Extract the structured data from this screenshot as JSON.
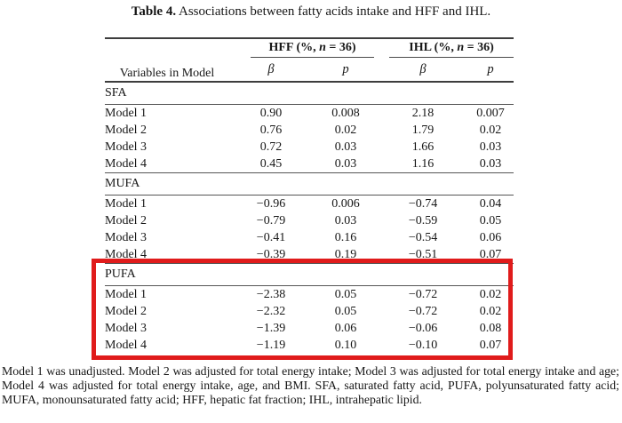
{
  "caption": {
    "label": "Table 4.",
    "text": " Associations between fatty acids intake and HFF and IHL."
  },
  "table": {
    "variables_header": "Variables in Model",
    "groups": [
      {
        "pre": "HFF (%, ",
        "n": "n",
        "post": " = 36)",
        "beta": "β",
        "p": "p"
      },
      {
        "pre": "IHL (%, ",
        "n": "n",
        "post": " = 36)",
        "beta": "β",
        "p": "p"
      }
    ],
    "sections": [
      {
        "label": "SFA",
        "rows": [
          {
            "model": "Model 1",
            "values": [
              "0.90",
              "0.008",
              "2.18",
              "0.007"
            ]
          },
          {
            "model": "Model 2",
            "values": [
              "0.76",
              "0.02",
              "1.79",
              "0.02"
            ]
          },
          {
            "model": "Model 3",
            "values": [
              "0.72",
              "0.03",
              "1.66",
              "0.03"
            ]
          },
          {
            "model": "Model 4",
            "values": [
              "0.45",
              "0.03",
              "1.16",
              "0.03"
            ]
          }
        ]
      },
      {
        "label": "MUFA",
        "rows": [
          {
            "model": "Model 1",
            "values": [
              "−0.96",
              "0.006",
              "−0.74",
              "0.04"
            ]
          },
          {
            "model": "Model 2",
            "values": [
              "−0.79",
              "0.03",
              "−0.59",
              "0.05"
            ]
          },
          {
            "model": "Model 3",
            "values": [
              "−0.41",
              "0.16",
              "−0.54",
              "0.06"
            ]
          },
          {
            "model": "Model 4",
            "values": [
              "−0.39",
              "0.19",
              "−0.51",
              "0.07"
            ]
          }
        ]
      },
      {
        "label": "PUFA",
        "rows": [
          {
            "model": "Model 1",
            "values": [
              "−2.38",
              "0.05",
              "−0.72",
              "0.02"
            ]
          },
          {
            "model": "Model 2",
            "values": [
              "−2.32",
              "0.05",
              "−0.72",
              "0.02"
            ]
          },
          {
            "model": "Model 3",
            "values": [
              "−1.39",
              "0.06",
              "−0.06",
              "0.08"
            ]
          },
          {
            "model": "Model 4",
            "values": [
              "−1.19",
              "0.10",
              "−0.10",
              "0.07"
            ]
          }
        ]
      }
    ]
  },
  "highlight": {
    "shape": "red-rectangle",
    "around_section": "PUFA",
    "color": "#e01b1b"
  },
  "footnote": "Model 1 was unadjusted. Model 2 was adjusted for total energy intake; Model 3 was adjusted for total energy intake and age; Model 4 was adjusted for total energy intake, age, and BMI. SFA, saturated fatty acid, PUFA, polyunsaturated fatty acid; MUFA, monounsaturated fatty acid; HFF, hepatic fat fraction; IHL, intrahepatic lipid."
}
